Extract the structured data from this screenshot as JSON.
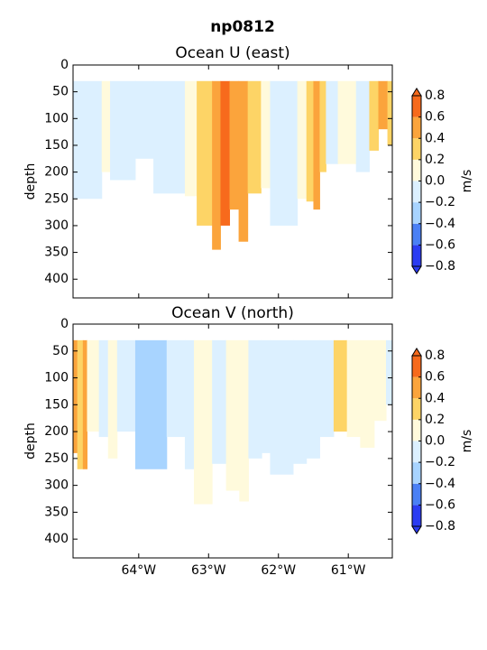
{
  "title": "np0812",
  "chart_data": [
    {
      "type": "heatmap",
      "title": "Ocean U (east)",
      "ylabel": "depth",
      "xlim": [
        -64.94,
        -60.37
      ],
      "ylim": [
        435,
        0
      ],
      "xticks": [
        -64,
        -63,
        -62,
        -61
      ],
      "yticks": [
        0,
        50,
        100,
        150,
        200,
        250,
        300,
        350,
        400
      ],
      "top": 30,
      "x_edges": [
        -64.94,
        -64.53,
        -64.41,
        -64.05,
        -63.79,
        -63.34,
        -63.17,
        -62.95,
        -62.83,
        -62.7,
        -62.57,
        -62.44,
        -62.25,
        -62.12,
        -61.73,
        -61.6,
        -61.5,
        -61.41,
        -61.32,
        -61.15,
        -60.89,
        -60.7,
        -60.57,
        -60.44,
        -60.37
      ],
      "values": [
        -0.1,
        0.1,
        -0.1,
        -0.1,
        -0.1,
        0.1,
        0.3,
        0.5,
        0.7,
        0.5,
        0.5,
        0.3,
        0.1,
        -0.1,
        0.1,
        0.3,
        0.5,
        0.3,
        -0.1,
        0.1,
        -0.1,
        0.3,
        0.5,
        0.3
      ],
      "bottom": [
        250,
        200,
        215,
        175,
        240,
        245,
        300,
        345,
        300,
        270,
        330,
        240,
        230,
        300,
        250,
        255,
        270,
        200,
        185,
        185,
        200,
        160,
        120,
        150
      ],
      "colorbar": {
        "label": "m/s",
        "levels": [
          {
            "value": -0.8,
            "label": "−0.8"
          },
          {
            "value": -0.6,
            "label": "−0.6"
          },
          {
            "value": -0.4,
            "label": "−0.4"
          },
          {
            "value": -0.2,
            "label": "−0.2"
          },
          {
            "value": 0,
            "label": "0.0"
          },
          0.2,
          0.4,
          0.6,
          0.8
        ],
        "colors": [
          "#2b3cf2",
          "#4a80f5",
          "#a8d4ff",
          "#dcf0ff",
          "#fffadc",
          "#fdd466",
          "#fba43c",
          "#f76a1c"
        ]
      }
    },
    {
      "type": "heatmap",
      "title": "Ocean V (north)",
      "ylabel": "depth",
      "xlim": [
        -64.94,
        -60.37
      ],
      "ylim": [
        435,
        0
      ],
      "xticks": [
        {
          "value": -64,
          "label": "64°W"
        },
        {
          "value": -63,
          "label": "63°W"
        },
        {
          "value": -62,
          "label": "62°W"
        },
        {
          "value": -61,
          "label": "61°W"
        }
      ],
      "yticks": [
        0,
        50,
        100,
        150,
        200,
        250,
        300,
        350,
        400
      ],
      "top": 30,
      "x_edges": [
        -64.94,
        -64.88,
        -64.8,
        -64.74,
        -64.57,
        -64.44,
        -64.31,
        -64.05,
        -63.6,
        -63.34,
        -63.21,
        -62.95,
        -62.75,
        -62.56,
        -62.43,
        -62.24,
        -62.12,
        -61.79,
        -61.6,
        -61.41,
        -61.21,
        -61.02,
        -60.83,
        -60.63,
        -60.46,
        -60.37
      ],
      "values": [
        0.5,
        0.3,
        0.5,
        0.1,
        -0.1,
        0.1,
        -0.1,
        -0.3,
        -0.1,
        -0.1,
        0.1,
        -0.1,
        0.1,
        0.1,
        -0.1,
        -0.1,
        -0.1,
        -0.1,
        -0.1,
        -0.1,
        0.3,
        0.1,
        0.1,
        0.1,
        -0.1
      ],
      "bottom": [
        240,
        270,
        270,
        200,
        210,
        250,
        200,
        270,
        210,
        270,
        335,
        260,
        310,
        330,
        250,
        240,
        280,
        260,
        250,
        210,
        200,
        210,
        230,
        180,
        150
      ],
      "colorbar": {
        "label": "m/s",
        "levels": [
          {
            "value": -0.8,
            "label": "−0.8"
          },
          {
            "value": -0.6,
            "label": "−0.6"
          },
          {
            "value": -0.4,
            "label": "−0.4"
          },
          {
            "value": -0.2,
            "label": "−0.2"
          },
          {
            "value": 0,
            "label": "0.0"
          },
          0.2,
          0.4,
          0.6,
          0.8
        ],
        "colors": [
          "#2b3cf2",
          "#4a80f5",
          "#a8d4ff",
          "#dcf0ff",
          "#fffadc",
          "#fdd466",
          "#fba43c",
          "#f76a1c"
        ]
      }
    }
  ]
}
